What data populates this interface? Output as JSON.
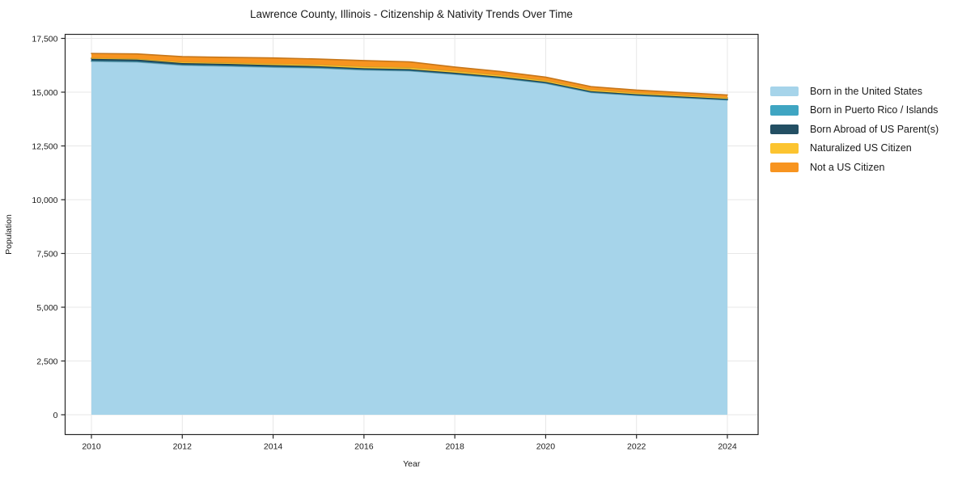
{
  "title": "Lawrence County, Illinois - Citizenship & Nativity Trends Over Time",
  "chart_data": {
    "type": "area",
    "stacked": true,
    "title": "Lawrence County, Illinois - Citizenship & Nativity Trends Over Time",
    "xlabel": "Year",
    "ylabel": "Population",
    "x": [
      2010,
      2011,
      2012,
      2013,
      2014,
      2015,
      2016,
      2017,
      2018,
      2019,
      2020,
      2021,
      2022,
      2023,
      2024
    ],
    "xticks": [
      2010,
      2012,
      2014,
      2016,
      2018,
      2020,
      2022,
      2024
    ],
    "yticks": [
      0,
      2500,
      5000,
      7500,
      10000,
      12500,
      15000,
      17500
    ],
    "ylim": [
      0,
      17500
    ],
    "grid": true,
    "legend_position": "right",
    "series": [
      {
        "name": "Born in the United States",
        "color": "#a6d4ea",
        "values": [
          16430,
          16400,
          16250,
          16210,
          16160,
          16120,
          16030,
          15990,
          15830,
          15650,
          15410,
          14985,
          14845,
          14740,
          14635
        ]
      },
      {
        "name": "Born in Puerto Rico / Islands",
        "color": "#3fa5c2",
        "values": [
          35,
          35,
          30,
          30,
          28,
          25,
          25,
          22,
          22,
          20,
          20,
          18,
          18,
          16,
          15
        ]
      },
      {
        "name": "Born Abroad of US Parent(s)",
        "color": "#234f63",
        "values": [
          85,
          85,
          75,
          75,
          72,
          65,
          60,
          58,
          55,
          50,
          48,
          45,
          42,
          40,
          40
        ]
      },
      {
        "name": "Naturalized US Citizen",
        "color": "#fcc430",
        "values": [
          45,
          45,
          55,
          60,
          70,
          75,
          85,
          85,
          85,
          80,
          75,
          75,
          72,
          70,
          68
        ]
      },
      {
        "name": "Not a US Citizen",
        "color": "#f79420",
        "values": [
          205,
          215,
          240,
          245,
          260,
          255,
          270,
          255,
          175,
          160,
          145,
          135,
          118,
          115,
          110
        ]
      }
    ]
  },
  "colors": {
    "spine": "#262626",
    "grid": "#e7e7e7",
    "tick_text": "#1a1a1a"
  }
}
